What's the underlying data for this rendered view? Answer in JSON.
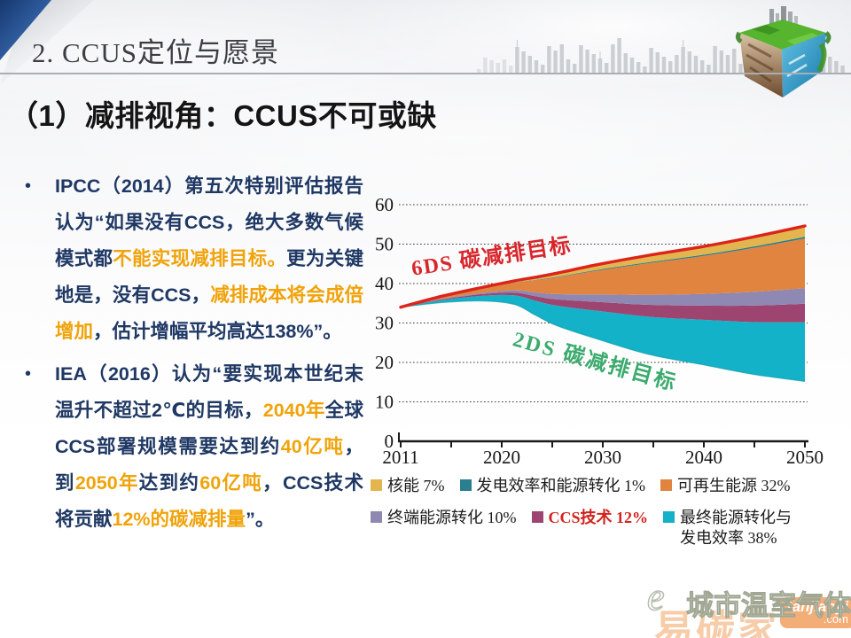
{
  "slide": {
    "title": "2. CCUS定位与愿景",
    "subtitle": "（1）减排视角：CCUS不可或缺",
    "bullet_char": "•"
  },
  "colors": {
    "body_text": "#1f3864",
    "highlight_text": "#f0a30a",
    "line_6ds": "#dd2419",
    "label_2ds": "#3cab6e",
    "ccs_emphasis": "#d2231e"
  },
  "bullets": [
    {
      "segments": [
        {
          "text": "IPCC（2014）第五次特别评估报告认为“如果没有CCS，绝大多数气候模式都",
          "highlight": false
        },
        {
          "text": "不能实现减排目标。",
          "highlight": true
        },
        {
          "text": "更为关键地是，没有CCS，",
          "highlight": false
        },
        {
          "text": "减排成本将会成倍增加",
          "highlight": true
        },
        {
          "text": "，估计增幅平均高达138%”。",
          "highlight": false
        }
      ]
    },
    {
      "segments": [
        {
          "text": "IEA（2016）认为“要实现本世纪末温升不超过2℃的目标，",
          "highlight": false
        },
        {
          "text": "2040年",
          "highlight": true
        },
        {
          "text": "全球CCS部署规模需要达到约",
          "highlight": false
        },
        {
          "text": "40亿吨",
          "highlight": true
        },
        {
          "text": "，到",
          "highlight": false
        },
        {
          "text": "2050年",
          "highlight": true
        },
        {
          "text": "达到约",
          "highlight": false
        },
        {
          "text": "60亿吨",
          "highlight": true
        },
        {
          "text": "，CCS技术将贡献",
          "highlight": false
        },
        {
          "text": "12%的碳减排量",
          "highlight": true
        },
        {
          "text": "”。",
          "highlight": false
        }
      ]
    }
  ],
  "chart_data": {
    "type": "area",
    "title": "",
    "xlabel": "",
    "ylabel": "",
    "x": [
      2011,
      2015,
      2019,
      2022,
      2024,
      2026,
      2030,
      2035,
      2040,
      2045,
      2050
    ],
    "series": [
      {
        "name": "6DS 碳减排目标",
        "role": "upper-boundary",
        "color": "#dd2419",
        "values": [
          34,
          36.8,
          39.1,
          40.7,
          41.6,
          42.6,
          44.8,
          47.2,
          49.3,
          51.8,
          54.6
        ]
      },
      {
        "name": "2DS 碳减排目标",
        "role": "lower-boundary",
        "color": "#3cab6e",
        "values": [
          34,
          35.2,
          35.6,
          34.7,
          32.0,
          29.4,
          25.9,
          22.0,
          19.5,
          17.0,
          15.2
        ]
      }
    ],
    "bands_bottom_to_top": [
      {
        "name": "最终能源转化与发电效率 38%",
        "pct": 38,
        "color": "#14b2c9"
      },
      {
        "name": "CCS技术 12%",
        "pct": 12,
        "color": "#9d4470"
      },
      {
        "name": "终端能源转化 10%",
        "pct": 10,
        "color": "#8f88b2"
      },
      {
        "name": "可再生能源 32%",
        "pct": 32,
        "color": "#e08440"
      },
      {
        "name": "发电效率和能源转化 1%",
        "pct": 1,
        "color": "#2a7f8e"
      },
      {
        "name": "核能 7%",
        "pct": 7,
        "color": "#e3b54e"
      }
    ],
    "ylim": [
      0,
      60
    ],
    "yticks": [
      0,
      10,
      20,
      30,
      40,
      50,
      60
    ],
    "xtick_labels": [
      "2011",
      "2020",
      "2030",
      "2040",
      "2050"
    ],
    "grid": "horizontal-dotted",
    "annotations": [
      {
        "id": "6ds",
        "text": "6DS 碳减排目标",
        "color": "#d8262b"
      },
      {
        "id": "2ds",
        "text": "2DS 碳减排目标",
        "color": "#3cab6e"
      }
    ],
    "legend": {
      "position": "bottom",
      "rows": [
        [
          {
            "label": "核能 7%",
            "color": "#e3b54e"
          },
          {
            "label": "发电效率和能源转化 1%",
            "color": "#2a7f8e"
          },
          {
            "label": "可再生能源 32%",
            "color": "#e08440"
          }
        ],
        [
          {
            "label": "终端能源转化 10%",
            "color": "#8f88b2"
          },
          {
            "label": "CCS技术 12%",
            "color": "#9d4470",
            "emphasis": "#d2231e"
          },
          {
            "label": "最终能源转化与发电效率 38%",
            "color": "#14b2c9"
          }
        ]
      ]
    }
  },
  "watermark": {
    "logo_char": "e",
    "brand": "城市温室气体",
    "overlay_text": "易碳家",
    "badge": "tanjiaoyi",
    "badge_suffix": ".com"
  }
}
